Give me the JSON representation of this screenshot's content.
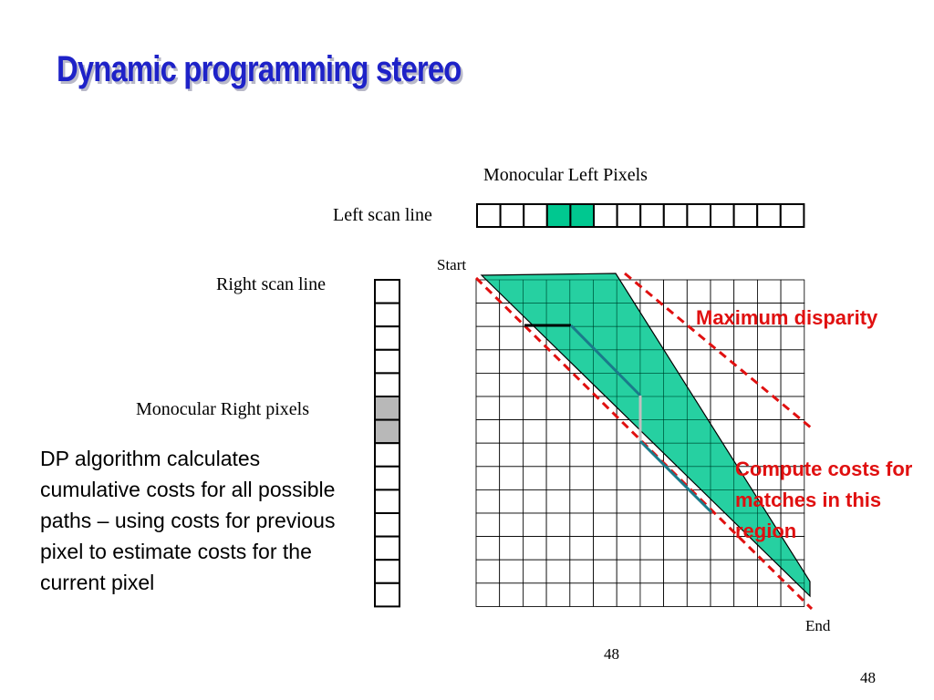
{
  "slide": {
    "title": "Dynamic programming stereo",
    "page_number": "48",
    "page_number_footer": "48"
  },
  "labels": {
    "monocular_left_pixels": "Monocular Left Pixels",
    "left_scan_line": "Left scan line",
    "right_scan_line": "Right scan line",
    "monocular_right_pixels": "Monocular Right pixels",
    "start": "Start",
    "end": "End",
    "maximum_disparity": "Maximum disparity",
    "compute_costs": "Compute costs for matches in this region"
  },
  "body_text": "DP algorithm calculates cumulative costs for all possible paths – using costs for previous pixel to estimate costs for the current pixel",
  "left_scan_line": {
    "cell_count": 14,
    "highlighted_cells": [
      3,
      4
    ],
    "highlight_color": "#00c890"
  },
  "right_scan_line": {
    "cell_count": 14,
    "highlighted_cells": [
      5,
      6
    ],
    "highlight_color": "#b8b8b8"
  },
  "grid": {
    "columns": 14,
    "rows": 14,
    "band_color": "#00c890",
    "dashed_line_color": "#e01010",
    "path_colors": [
      "#000000",
      "#1a7a8a",
      "#c0c0c0"
    ]
  }
}
